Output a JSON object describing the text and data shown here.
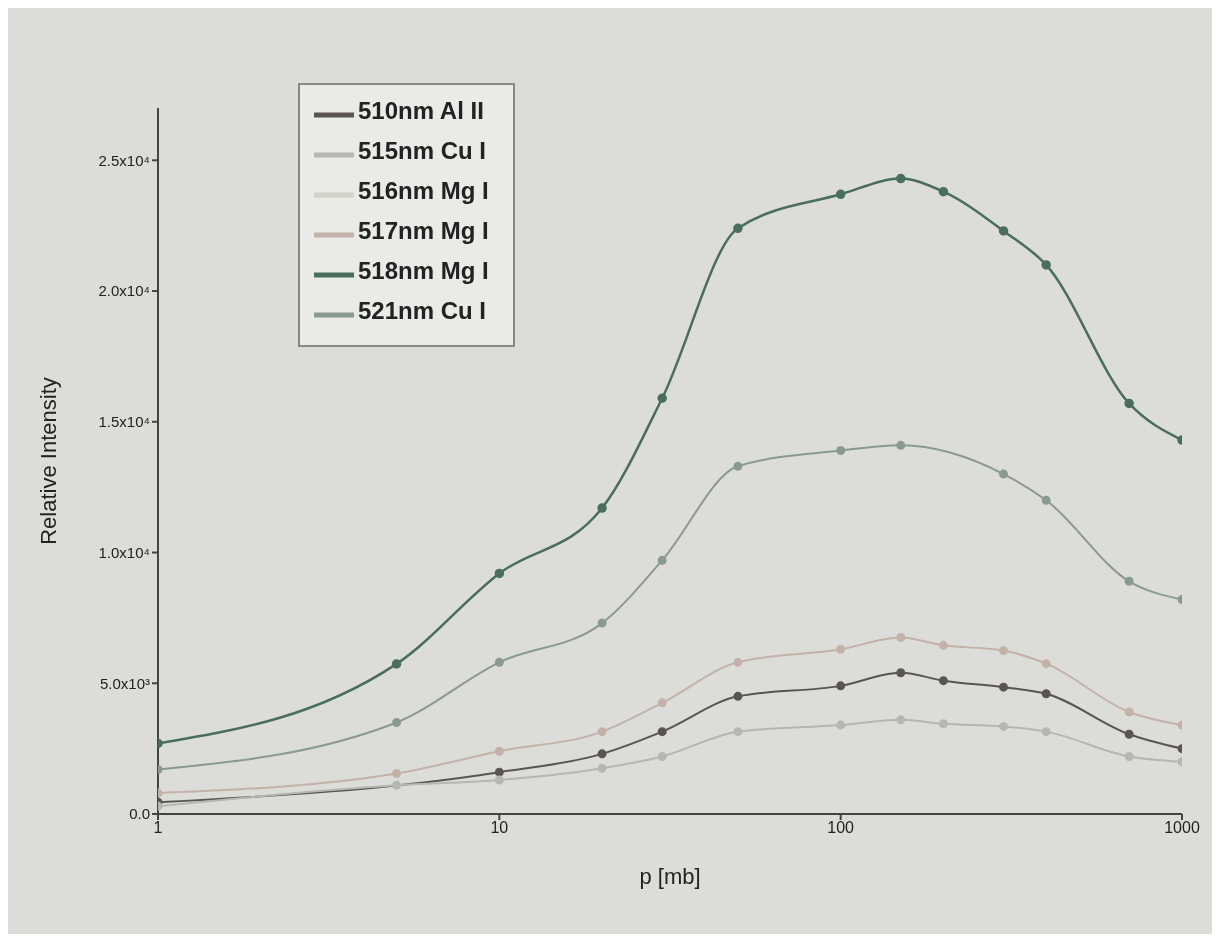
{
  "chart_data": {
    "type": "line",
    "xlabel": "p [mb]",
    "ylabel": "Relative Intensity",
    "log": "x",
    "grid": false,
    "legend": "top left",
    "marker": "circle",
    "line_style": "solid",
    "x": [
      1,
      5,
      10,
      20,
      30,
      50,
      100,
      150,
      200,
      300,
      400,
      700,
      1000
    ],
    "xlim": [
      1,
      1000
    ],
    "xticks": [
      1,
      10,
      100,
      1000
    ],
    "ylim": [
      0,
      27000
    ],
    "yticks": [
      {
        "value": 0,
        "label": "0.0"
      },
      {
        "value": 5000,
        "label": "5.0x10³"
      },
      {
        "value": 10000,
        "label": "1.0x10⁴"
      },
      {
        "value": 15000,
        "label": "1.5x10⁴"
      },
      {
        "value": 20000,
        "label": "2.0x10⁴"
      },
      {
        "value": 25000,
        "label": "2.5x10⁴"
      }
    ],
    "series": [
      {
        "name": "510nm Al  II",
        "color": "#5a5550",
        "values": [
          450,
          null,
          1600,
          2300,
          3150,
          4500,
          4900,
          5400,
          5100,
          4850,
          4600,
          3050,
          2500
        ]
      },
      {
        "name": "515nm Cu I",
        "color": "#b4b8b0",
        "values": [
          300,
          1100,
          1300,
          1750,
          2200,
          3150,
          3400,
          3600,
          3450,
          3350,
          3150,
          2200,
          2000
        ]
      },
      {
        "name": "516nm Mg I",
        "color": "#d4d2ca",
        "values": [
          null,
          null,
          null,
          null,
          null,
          null,
          null,
          null,
          null,
          null,
          null,
          null,
          null
        ]
      },
      {
        "name": "517nm Mg I",
        "color": "#c4b2aa",
        "values": [
          800,
          1550,
          2400,
          3150,
          4250,
          5800,
          6300,
          6750,
          6450,
          6250,
          5750,
          3900,
          3400
        ]
      },
      {
        "name": "518nm Mg I",
        "color": "#4a6e5e",
        "values": [
          2700,
          5740,
          9200,
          11700,
          15900,
          22400,
          23700,
          24300,
          23800,
          22300,
          21000,
          15700,
          14300
        ]
      },
      {
        "name": "521nm Cu I",
        "color": "#8a9a90",
        "values": [
          1700,
          3500,
          5800,
          7300,
          9700,
          13300,
          13900,
          14100,
          null,
          13000,
          12000,
          8900,
          8200
        ]
      }
    ]
  }
}
